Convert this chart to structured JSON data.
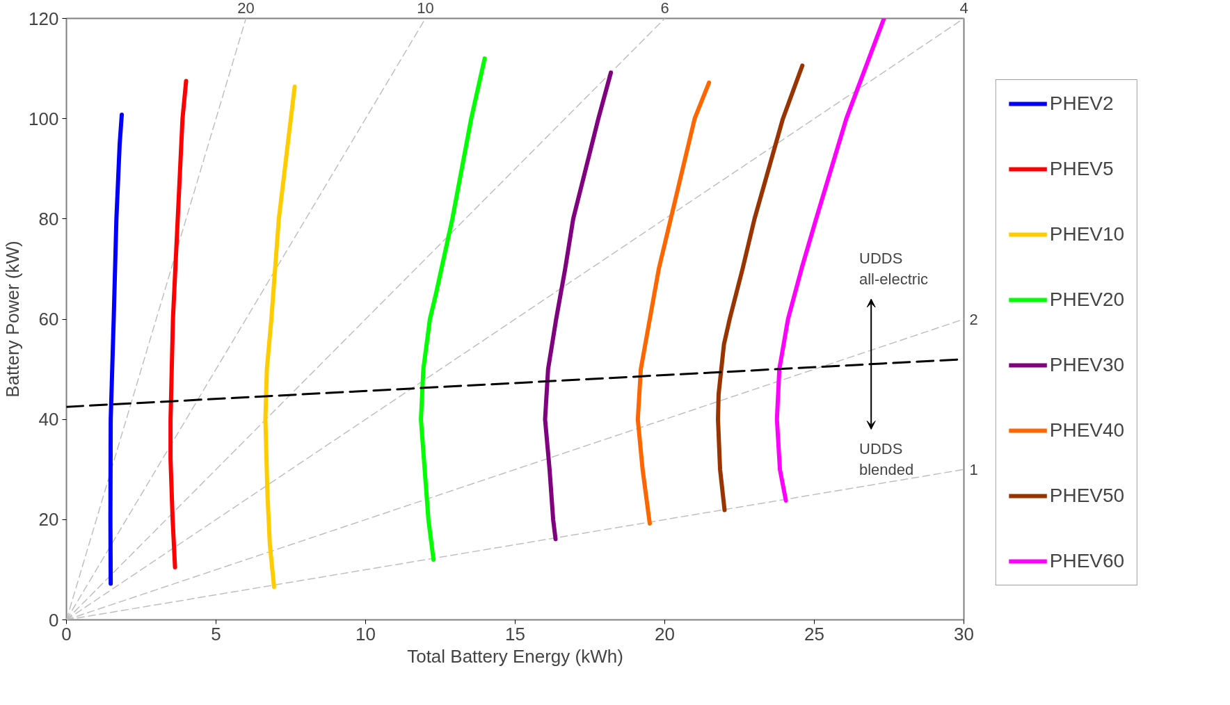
{
  "chart_data": {
    "type": "line",
    "xlabel": "Total Battery Energy (kWh)",
    "ylabel": "Battery Power (kW)",
    "xlim": [
      0,
      30
    ],
    "ylim": [
      0,
      120
    ],
    "xticks": [
      0,
      5,
      10,
      15,
      20,
      25,
      30
    ],
    "yticks": [
      0,
      20,
      40,
      60,
      80,
      100,
      120
    ],
    "grid": false,
    "legend": "right",
    "line_style": "solid",
    "marker": "none",
    "series": [
      {
        "name": "20",
        "color": "#bfbfbf",
        "line_style": "dashed",
        "x": [
          0,
          6
        ],
        "values": [
          0,
          120
        ]
      },
      {
        "name": "10",
        "color": "#bfbfbf",
        "line_style": "dashed",
        "x": [
          0,
          12
        ],
        "values": [
          0,
          120
        ]
      },
      {
        "name": "6",
        "color": "#bfbfbf",
        "line_style": "dashed",
        "x": [
          0,
          20
        ],
        "values": [
          0,
          120
        ]
      },
      {
        "name": "4",
        "color": "#bfbfbf",
        "line_style": "dashed",
        "x": [
          0,
          30
        ],
        "values": [
          0,
          120
        ]
      },
      {
        "name": "2",
        "color": "#bfbfbf",
        "line_style": "dashed",
        "x": [
          0,
          30
        ],
        "values": [
          0,
          60
        ]
      },
      {
        "name": "1",
        "color": "#bfbfbf",
        "line_style": "dashed",
        "x": [
          0,
          30
        ],
        "values": [
          0,
          30
        ]
      },
      {
        "name": "PHEV2",
        "color": "#0000ff",
        "x": [
          1.48,
          1.47,
          1.48,
          1.58,
          1.67,
          1.78,
          1.85
        ],
        "values": [
          7.2,
          20,
          40,
          60,
          80,
          95,
          100.8
        ]
      },
      {
        "name": "PHEV5",
        "color": "#ff0000",
        "x": [
          3.63,
          3.55,
          3.48,
          3.48,
          3.56,
          3.72,
          3.88,
          4.0
        ],
        "values": [
          10.5,
          20,
          32,
          40,
          60,
          80,
          100,
          107.5
        ]
      },
      {
        "name": "PHEV10",
        "color": "#ffcc00",
        "x": [
          6.94,
          6.8,
          6.72,
          6.65,
          6.7,
          6.85,
          7.1,
          7.4,
          7.63
        ],
        "values": [
          6.6,
          15,
          25,
          40,
          50,
          60,
          80,
          95,
          106.4
        ]
      },
      {
        "name": "PHEV20",
        "color": "#00ff00",
        "x": [
          12.27,
          12.1,
          11.85,
          11.93,
          12.15,
          12.35,
          12.9,
          13.53,
          13.98
        ],
        "values": [
          12,
          20,
          40,
          50,
          60,
          65,
          80,
          100,
          112
        ]
      },
      {
        "name": "PHEV30",
        "color": "#800080",
        "x": [
          16.35,
          16.27,
          16.15,
          16.0,
          16.1,
          16.37,
          16.67,
          16.94,
          17.78,
          18.2
        ],
        "values": [
          16.1,
          20,
          30,
          40,
          50,
          60,
          70,
          80,
          100,
          109.2
        ]
      },
      {
        "name": "PHEV40",
        "color": "#ff6600",
        "x": [
          19.5,
          19.26,
          19.1,
          19.2,
          19.5,
          19.8,
          20.2,
          21.0,
          21.48
        ],
        "values": [
          19.2,
          30,
          40,
          50,
          60,
          70,
          80,
          100,
          107.2
        ]
      },
      {
        "name": "PHEV50",
        "color": "#993300",
        "x": [
          22.0,
          21.85,
          21.78,
          21.8,
          21.98,
          22.17,
          22.6,
          23.0,
          23.95,
          24.6
        ],
        "values": [
          21.9,
          30,
          40,
          45,
          55,
          60,
          70,
          80,
          100,
          110.6
        ]
      },
      {
        "name": "PHEV60",
        "color": "#ff00ff",
        "x": [
          24.05,
          23.85,
          23.75,
          23.83,
          24.12,
          24.57,
          25.06,
          26.07,
          27.33
        ],
        "values": [
          23.8,
          30,
          40,
          50,
          60,
          70,
          80,
          100,
          120
        ]
      },
      {
        "color": "#000000",
        "line_style": "dashed",
        "x": [
          0,
          30
        ],
        "values": [
          42.5,
          52
        ]
      }
    ],
    "annotations": [
      "UDDS\nall-electric",
      "UDDS\nblended"
    ]
  }
}
